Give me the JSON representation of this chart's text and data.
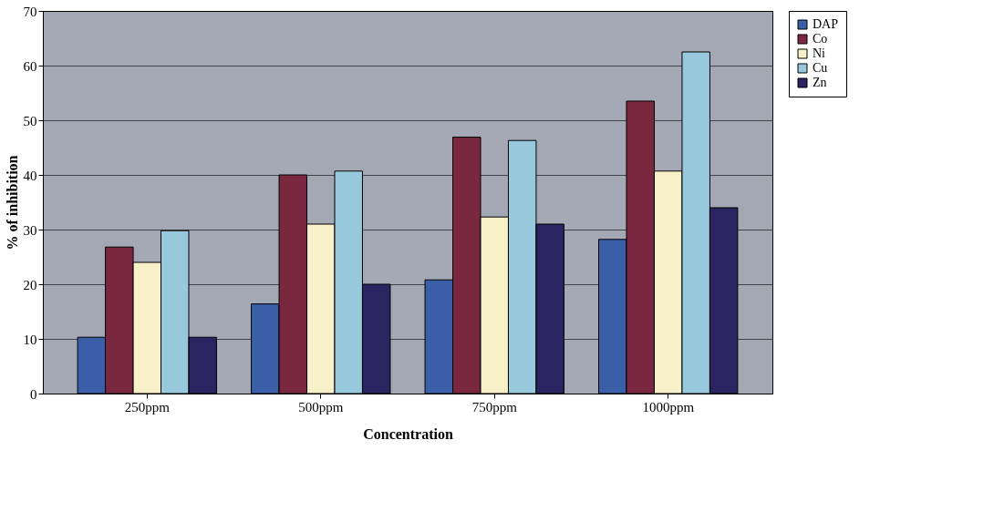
{
  "chart_data": {
    "type": "bar",
    "xlabel": "Concentration",
    "ylabel": "% of inhibition",
    "categories": [
      "250ppm",
      "500ppm",
      "750ppm",
      "1000ppm"
    ],
    "series": [
      {
        "name": "DAP",
        "color": "#3a5ea8",
        "values": [
          10.3,
          16.4,
          20.8,
          28.2
        ]
      },
      {
        "name": "Co",
        "color": "#7a2840",
        "values": [
          26.8,
          40,
          46.9,
          53.5
        ]
      },
      {
        "name": "Ni",
        "color": "#f8f0c8",
        "values": [
          24,
          31,
          32.3,
          40.7
        ]
      },
      {
        "name": "Cu",
        "color": "#98c8dc",
        "values": [
          29.8,
          40.7,
          46.3,
          62.5
        ]
      },
      {
        "name": "Zn",
        "color": "#2a2560",
        "values": [
          10.3,
          20,
          31,
          34
        ]
      }
    ],
    "ylim": [
      0,
      70
    ],
    "yticks": [
      0,
      10,
      20,
      30,
      40,
      50,
      60,
      70
    ],
    "grid": "y",
    "legend": "right"
  }
}
